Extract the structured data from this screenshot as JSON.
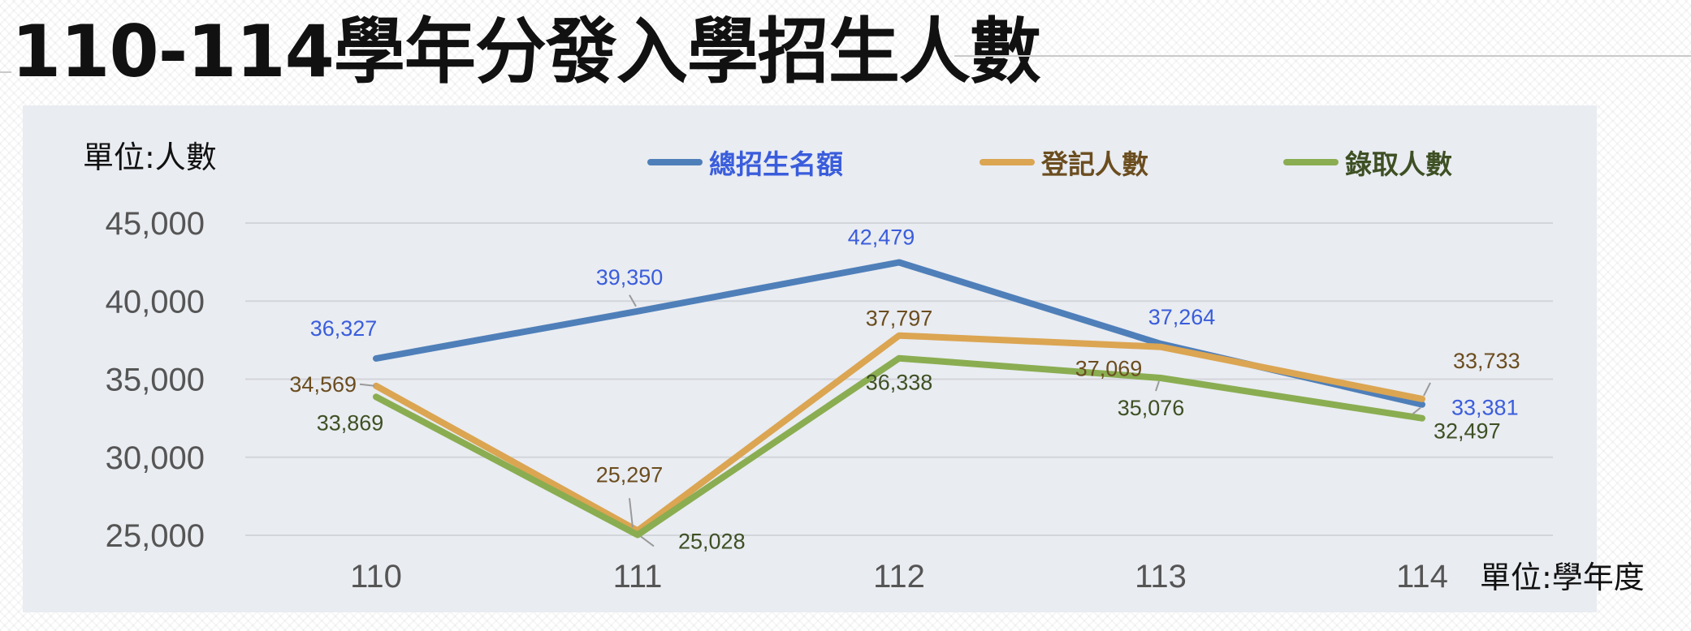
{
  "title": "110-114學年分發入學招生人數",
  "y_unit_label": "單位:人數",
  "x_unit_label": "單位:學年度",
  "chart_data": {
    "type": "line",
    "title": "110-114學年分發入學招生人數",
    "xlabel": "單位:學年度",
    "ylabel": "單位:人數",
    "categories": [
      "110",
      "111",
      "112",
      "113",
      "114"
    ],
    "ylim": [
      25000,
      45000
    ],
    "yticks": [
      25000,
      30000,
      35000,
      40000,
      45000
    ],
    "ytick_labels": [
      "25,000",
      "30,000",
      "35,000",
      "40,000",
      "45,000"
    ],
    "grid": true,
    "legend_position": "top",
    "series": [
      {
        "name": "總招生名額",
        "color": "#4f7fb9",
        "label_color": "#3a5ddc",
        "values": [
          36327,
          39350,
          42479,
          37264,
          33381
        ],
        "value_labels": [
          "36,327",
          "39,350",
          "42,479",
          "37,264",
          "33,381"
        ]
      },
      {
        "name": "登記人數",
        "color": "#dba552",
        "label_color": "#6b4d1f",
        "values": [
          34569,
          25297,
          37797,
          37069,
          33733
        ],
        "value_labels": [
          "34,569",
          "25,297",
          "37,797",
          "37,069",
          "33,733"
        ]
      },
      {
        "name": "錄取人數",
        "color": "#8aad51",
        "label_color": "#3e5024",
        "values": [
          33869,
          25028,
          36338,
          35076,
          32497
        ],
        "value_labels": [
          "33,869",
          "25,028",
          "36,338",
          "35,076",
          "32,497"
        ]
      }
    ]
  }
}
